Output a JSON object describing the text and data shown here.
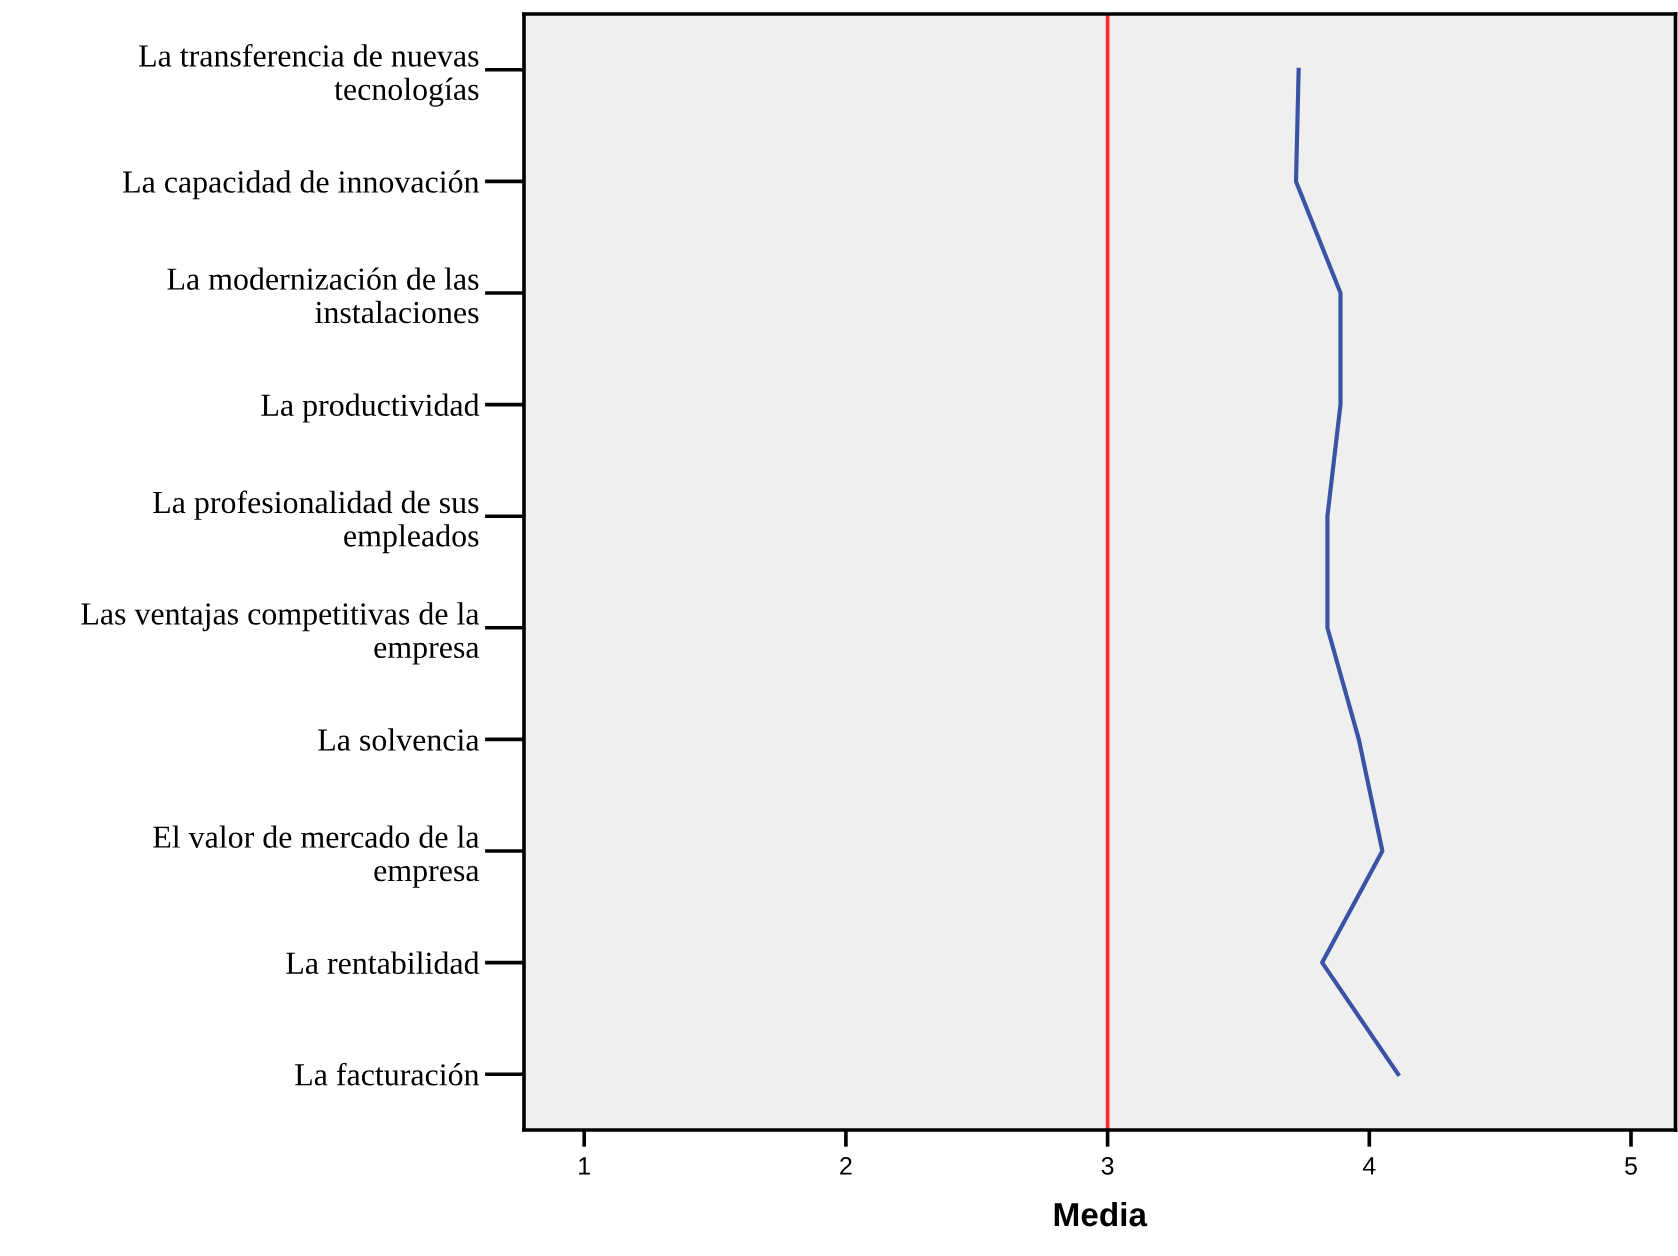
{
  "chart_data": {
    "type": "line",
    "orientation": "horizontal",
    "xlabel": "Media",
    "categories": [
      "La transferencia de nuevas\ntecnologías",
      "La capacidad de innovación",
      "La modernización de las\ninstalaciones",
      "La productividad",
      "La profesionalidad de sus\nempleados",
      "Las ventajas competitivas de la\nempresa",
      "La solvencia",
      "El valor de mercado de la\nempresa",
      "La rentabilidad",
      "La facturación"
    ],
    "series": [
      {
        "color": "#3a53a4",
        "values": [
          3.73,
          3.72,
          3.89,
          3.89,
          3.84,
          3.84,
          3.96,
          4.05,
          3.82,
          4.11
        ]
      }
    ],
    "xlim": [
      0.77,
      5.17
    ],
    "xticks": [
      1,
      2,
      3,
      4,
      5
    ],
    "ref_lines": [
      {
        "axis": "x",
        "value": 3,
        "color": "#ff2a2a"
      }
    ],
    "grid": false,
    "marker": "none",
    "line_style": "solid"
  }
}
